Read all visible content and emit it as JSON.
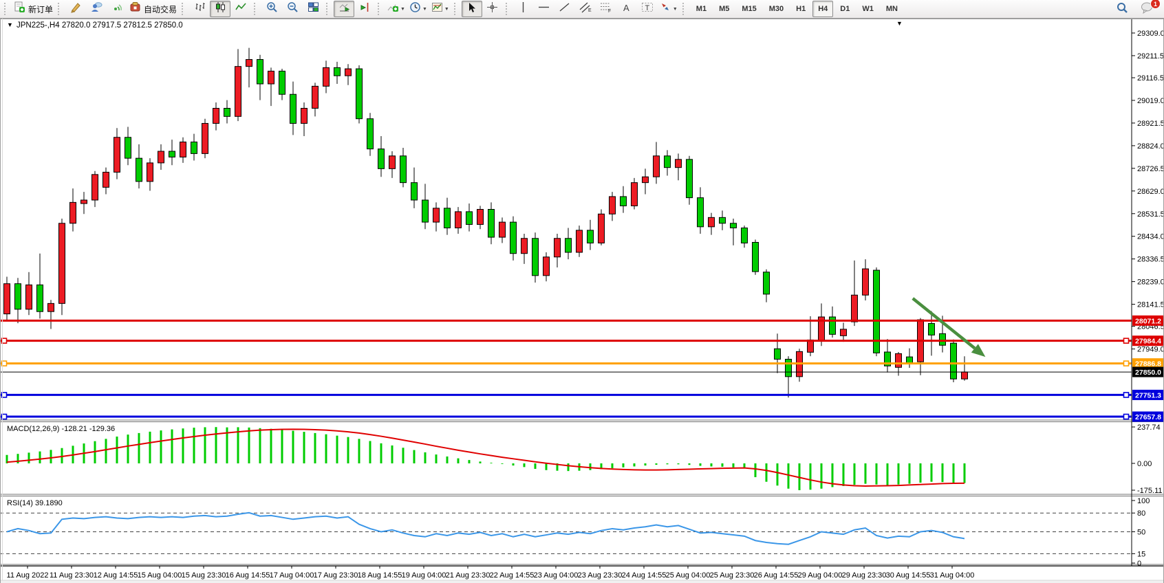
{
  "toolbar": {
    "new_order_label": "新订单",
    "autotrading_label": "自动交易",
    "icons": [
      "new-order-icon",
      "crayon-icon",
      "community-icon",
      "signals-icon",
      "autotrading-icon",
      "bar-chart-icon",
      "candlestick-chart-icon",
      "line-chart-icon",
      "zoom-in-icon",
      "zoom-out-icon",
      "tile-windows-icon",
      "auto-scroll-icon",
      "chart-shift-icon",
      "indicators-icon",
      "periods-icon",
      "templates-icon",
      "cursor-icon",
      "crosshair-icon",
      "vertical-line-icon",
      "horizontal-line-icon",
      "trendline-icon",
      "equidistant-channel-icon",
      "fibonacci-icon",
      "text-icon",
      "text-label-icon",
      "arrows-icon",
      "search-icon",
      "chat-icon"
    ],
    "timeframes": [
      "M1",
      "M5",
      "M15",
      "M30",
      "H1",
      "H4",
      "D1",
      "W1",
      "MN"
    ],
    "active_timeframe": "H4",
    "notification_count": "1"
  },
  "chart": {
    "title": {
      "symbol_period": "JPN225-,H4",
      "open": "27820.0",
      "high": "27917.5",
      "low": "27812.5",
      "close": "27850.0"
    },
    "price_axis_ticks": [
      29309.0,
      29211.5,
      29116.5,
      29019.0,
      28921.5,
      28824.0,
      28726.5,
      28629.0,
      28531.5,
      28434.0,
      28336.5,
      28239.0,
      28141.5,
      28046.5,
      27949.0
    ],
    "lines": [
      {
        "price": 28071.2,
        "label": "28071.2",
        "color": "#dd0000",
        "width": 3,
        "handles": false
      },
      {
        "price": 27984.4,
        "label": "27984.4",
        "color": "#dd0000",
        "width": 3,
        "handles": true
      },
      {
        "price": 27886.8,
        "label": "27886.8",
        "color": "#ffa000",
        "width": 3,
        "handles": true
      },
      {
        "price": 27850.0,
        "label": "27850.0",
        "color": "#000000",
        "width": 1,
        "handles": false
      },
      {
        "price": 27751.3,
        "label": "27751.3",
        "color": "#0000dd",
        "width": 3,
        "handles": true
      },
      {
        "price": 27657.8,
        "label": "27657.8",
        "color": "#0000dd",
        "width": 3,
        "handles": true
      }
    ],
    "dates": [
      "11 Aug 2022",
      "11 Aug 23:30",
      "12 Aug 14:55",
      "15 Aug 04:00",
      "15 Aug 23:30",
      "16 Aug 14:55",
      "17 Aug 04:00",
      "17 Aug 23:30",
      "18 Aug 14:55",
      "19 Aug 04:00",
      "21 Aug 23:30",
      "22 Aug 14:55",
      "23 Aug 04:00",
      "23 Aug 23:30",
      "24 Aug 14:55",
      "25 Aug 04:00",
      "25 Aug 23:30",
      "26 Aug 14:55",
      "29 Aug 04:00",
      "29 Aug 23:30",
      "30 Aug 14:55",
      "31 Aug 04:00"
    ]
  },
  "chart_data": {
    "type": "candlestick",
    "symbol": "JPN225-",
    "timeframe": "H4",
    "up_color": "#ec1c24",
    "down_color": "#00cc00",
    "price_range_visible": [
      27600,
      29340
    ],
    "candles": [
      [
        28100,
        28260,
        28075,
        28230
      ],
      [
        28230,
        28255,
        28060,
        28120
      ],
      [
        28120,
        28280,
        28095,
        28225
      ],
      [
        28225,
        28360,
        28080,
        28110
      ],
      [
        28110,
        28160,
        28035,
        28145
      ],
      [
        28145,
        28510,
        28095,
        28490
      ],
      [
        28490,
        28640,
        28455,
        28580
      ],
      [
        28575,
        28625,
        28530,
        28590
      ],
      [
        28590,
        28715,
        28560,
        28700
      ],
      [
        28645,
        28730,
        28615,
        28710
      ],
      [
        28710,
        28900,
        28680,
        28860
      ],
      [
        28860,
        28905,
        28740,
        28770
      ],
      [
        28770,
        28830,
        28640,
        28670
      ],
      [
        28670,
        28770,
        28630,
        28750
      ],
      [
        28750,
        28830,
        28720,
        28800
      ],
      [
        28800,
        28850,
        28740,
        28775
      ],
      [
        28775,
        28860,
        28750,
        28840
      ],
      [
        28840,
        28875,
        28760,
        28790
      ],
      [
        28790,
        28940,
        28770,
        28920
      ],
      [
        28920,
        29010,
        28890,
        28985
      ],
      [
        28985,
        29020,
        28920,
        28950
      ],
      [
        28950,
        29240,
        28930,
        29165
      ],
      [
        29165,
        29245,
        29075,
        29195
      ],
      [
        29195,
        29215,
        29020,
        29090
      ],
      [
        29090,
        29160,
        28995,
        29145
      ],
      [
        29145,
        29155,
        29020,
        29045
      ],
      [
        29045,
        29100,
        28870,
        28920
      ],
      [
        28920,
        29010,
        28865,
        28985
      ],
      [
        28985,
        29095,
        28950,
        29080
      ],
      [
        29080,
        29190,
        29050,
        29160
      ],
      [
        29160,
        29185,
        29090,
        29125
      ],
      [
        29125,
        29175,
        29085,
        29155
      ],
      [
        29155,
        29170,
        28920,
        28940
      ],
      [
        28940,
        28965,
        28780,
        28810
      ],
      [
        28810,
        28865,
        28690,
        28725
      ],
      [
        28725,
        28800,
        28685,
        28780
      ],
      [
        28780,
        28815,
        28645,
        28665
      ],
      [
        28665,
        28730,
        28555,
        28590
      ],
      [
        28590,
        28660,
        28465,
        28495
      ],
      [
        28495,
        28580,
        28455,
        28555
      ],
      [
        28555,
        28600,
        28440,
        28470
      ],
      [
        28470,
        28560,
        28445,
        28540
      ],
      [
        28540,
        28575,
        28455,
        28485
      ],
      [
        28485,
        28565,
        28465,
        28550
      ],
      [
        28550,
        28580,
        28400,
        28430
      ],
      [
        28430,
        28515,
        28405,
        28495
      ],
      [
        28495,
        28520,
        28330,
        28360
      ],
      [
        28360,
        28445,
        28315,
        28425
      ],
      [
        28425,
        28450,
        28235,
        28265
      ],
      [
        28265,
        28365,
        28240,
        28345
      ],
      [
        28345,
        28445,
        28300,
        28425
      ],
      [
        28425,
        28470,
        28335,
        28365
      ],
      [
        28365,
        28480,
        28345,
        28460
      ],
      [
        28460,
        28505,
        28375,
        28405
      ],
      [
        28405,
        28550,
        28395,
        28530
      ],
      [
        28530,
        28625,
        28500,
        28605
      ],
      [
        28605,
        28650,
        28535,
        28565
      ],
      [
        28565,
        28685,
        28550,
        28665
      ],
      [
        28665,
        28725,
        28615,
        28690
      ],
      [
        28690,
        28840,
        28660,
        28780
      ],
      [
        28780,
        28805,
        28695,
        28730
      ],
      [
        28730,
        28790,
        28675,
        28765
      ],
      [
        28765,
        28780,
        28570,
        28600
      ],
      [
        28600,
        28645,
        28445,
        28475
      ],
      [
        28475,
        28535,
        28440,
        28515
      ],
      [
        28515,
        28545,
        28460,
        28490
      ],
      [
        28490,
        28510,
        28395,
        28470
      ],
      [
        28470,
        28480,
        28385,
        28405
      ],
      [
        28408,
        28420,
        28268,
        28282
      ],
      [
        28280,
        28292,
        28150,
        28185
      ],
      [
        27950,
        28015,
        27845,
        27905
      ],
      [
        27905,
        27918,
        27740,
        27830
      ],
      [
        27830,
        27950,
        27808,
        27938
      ],
      [
        27935,
        28090,
        27918,
        27988
      ],
      [
        27985,
        28145,
        27962,
        28087
      ],
      [
        28087,
        28132,
        27998,
        28012
      ],
      [
        28006,
        28062,
        27980,
        28034
      ],
      [
        28066,
        28330,
        28048,
        28181
      ],
      [
        28181,
        28335,
        28158,
        28294
      ],
      [
        28288,
        28300,
        27918,
        27932
      ],
      [
        27936,
        27992,
        27848,
        27876
      ],
      [
        27870,
        27936,
        27834,
        27929
      ],
      [
        27915,
        27952,
        27868,
        27887
      ],
      [
        27894,
        28082,
        27836,
        28075
      ],
      [
        28059,
        28112,
        27920,
        28009
      ],
      [
        28015,
        28092,
        27934,
        27965
      ],
      [
        27974,
        27990,
        27806,
        27820
      ],
      [
        27820,
        27917.5,
        27812.5,
        27850
      ]
    ],
    "indicators": {
      "macd": {
        "label": "MACD(12,26,9)",
        "values_text": "-128.21 -129.36",
        "scale_labels": [
          "237.74",
          "0.00",
          "-175.11"
        ],
        "scale": {
          "max": 237.74,
          "zero": 0.0,
          "min": -175.11
        },
        "hist_color": "#00cc00",
        "signal_color": "#e00000",
        "hist": [
          55,
          62,
          70,
          78,
          88,
          100,
          115,
          130,
          145,
          160,
          175,
          188,
          198,
          207,
          215,
          222,
          228,
          233,
          236,
          237,
          235,
          236,
          234,
          230,
          226,
          220,
          213,
          206,
          198,
          190,
          181,
          172,
          160,
          146,
          131,
          117,
          102,
          87,
          72,
          58,
          45,
          33,
          22,
          12,
          4,
          -4,
          -14,
          -24,
          -36,
          -44,
          -48,
          -50,
          -48,
          -44,
          -38,
          -32,
          -26,
          -20,
          -14,
          -9,
          -6,
          -6,
          -10,
          -16,
          -20,
          -22,
          -26,
          -32,
          -90,
          -120,
          -145,
          -165,
          -175,
          -172,
          -165,
          -155,
          -148,
          -140,
          -133,
          -138,
          -142,
          -138,
          -133,
          -126,
          -120,
          -122,
          -126,
          -128.2
        ],
        "signal": [
          8,
          14,
          21,
          28,
          36,
          45,
          55,
          66,
          77,
          89,
          101,
          113,
          124,
          135,
          146,
          156,
          166,
          175,
          184,
          192,
          199,
          206,
          212,
          217,
          220,
          222,
          223,
          222,
          220,
          217,
          212,
          206,
          198,
          188,
          177,
          165,
          152,
          139,
          126,
          112,
          99,
          86,
          74,
          62,
          51,
          40,
          30,
          20,
          10,
          1,
          -7,
          -15,
          -22,
          -28,
          -33,
          -37,
          -40,
          -42,
          -43,
          -43,
          -42,
          -40,
          -38,
          -36,
          -34,
          -32,
          -31,
          -30,
          -36,
          -46,
          -60,
          -76,
          -92,
          -108,
          -122,
          -133,
          -141,
          -146,
          -148,
          -147,
          -146,
          -144,
          -141,
          -138,
          -135,
          -132,
          -130,
          -129.4
        ]
      },
      "rsi": {
        "label": "RSI(14)",
        "value_text": "39.1890",
        "line_color": "#3a96e8",
        "levels": [
          80,
          50,
          15
        ],
        "scale_labels": [
          "100",
          "80",
          "50",
          "15",
          "0"
        ],
        "range": [
          0,
          100
        ],
        "series": [
          50,
          55,
          52,
          47,
          48,
          70,
          72,
          71,
          73,
          74,
          72,
          71,
          73,
          74,
          73,
          74,
          73,
          75,
          76,
          74,
          75,
          78,
          80.5,
          75,
          76,
          73,
          70,
          72,
          74,
          75,
          72,
          74,
          62,
          55,
          50,
          53,
          48,
          44,
          42,
          47,
          44,
          48,
          46,
          49,
          44,
          47,
          42,
          46,
          42,
          45,
          48,
          46,
          49,
          47,
          52,
          55,
          53,
          56,
          58,
          61,
          58,
          60,
          54,
          48,
          49,
          47,
          45,
          43,
          36,
          33,
          31,
          30,
          36,
          42,
          50,
          48,
          46,
          53,
          56,
          44,
          40,
          43,
          42,
          50,
          52,
          49,
          42,
          39.19
        ]
      }
    },
    "annotations": {
      "arrow": {
        "from_index": 82.3,
        "from_price": 28167,
        "to_index": 88.9,
        "to_price": 27915,
        "color": "#4a8f3f"
      }
    }
  }
}
